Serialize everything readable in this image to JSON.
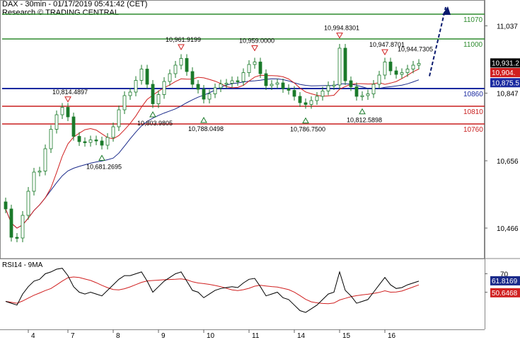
{
  "header": {
    "title": "DAX - 30min - 01/17/2019 05:41:42 (CET)",
    "subtitle": "Research © TRADING CENTRAL"
  },
  "colors": {
    "candle": "#1b7a2a",
    "ma_fast": "#d02020",
    "ma_slow": "#1a2a8a",
    "resistance": "#2e8b2e",
    "pivot": "#1a2aa0",
    "support": "#c81e1e",
    "rsi": "#000000",
    "rsi_ma": "#d02020",
    "arrow": "#0a1a6e"
  },
  "chart_data": [
    {
      "type": "candlestick",
      "title": "DAX - 30min - 01/17/2019 05:41:42 (CET)",
      "ylim": [
        10380,
        11110
      ],
      "y_ticks": [
        11037,
        10847,
        10656,
        10466
      ],
      "x_tick_labels": [
        "4",
        "7",
        "8",
        "9",
        "10",
        "11",
        "14",
        "15",
        "16"
      ],
      "levels": [
        {
          "value": 11070,
          "label": "11070",
          "kind": "resistance"
        },
        {
          "value": 11000,
          "label": "11000",
          "kind": "resistance"
        },
        {
          "value": 10860,
          "label": "10860",
          "kind": "pivot"
        },
        {
          "value": 10810,
          "label": "10810",
          "kind": "support"
        },
        {
          "value": 10760,
          "label": "10760",
          "kind": "support"
        }
      ],
      "price_tags": [
        {
          "value": 10931.2,
          "label": "10,931.2",
          "bg": "#000000"
        },
        {
          "value": 10904.0,
          "label": "10,904.",
          "bg": "#d02020"
        },
        {
          "value": 10875.5,
          "label": "10,875.5",
          "bg": "#1a2aa0"
        }
      ],
      "annotations": [
        {
          "label": "10,814.4897",
          "x": 11,
          "y": 10814.4897,
          "type": "high"
        },
        {
          "label": "10,681.2695",
          "x": 17,
          "y": 10681.2695,
          "type": "low"
        },
        {
          "label": "10,803.9805",
          "x": 26,
          "y": 10803.9805,
          "type": "low"
        },
        {
          "label": "10,961.9199",
          "x": 31,
          "y": 10961.9199,
          "type": "high"
        },
        {
          "label": "10,788.0498",
          "x": 35,
          "y": 10788.0498,
          "type": "low"
        },
        {
          "label": "10,959.0000",
          "x": 44,
          "y": 10959.0,
          "type": "high"
        },
        {
          "label": "10,786.7500",
          "x": 53,
          "y": 10786.75,
          "type": "low"
        },
        {
          "label": "10,994.8301",
          "x": 59,
          "y": 10994.8301,
          "type": "high"
        },
        {
          "label": "10,812.5898",
          "x": 63,
          "y": 10812.5898,
          "type": "low"
        },
        {
          "label": "10,947.8701",
          "x": 67,
          "y": 10947.8701,
          "type": "high"
        },
        {
          "label": "10,944.7305",
          "x": 73,
          "y": 10944.7305,
          "type": "text"
        }
      ],
      "x_labels_at": [
        4,
        11,
        19,
        27,
        35,
        43,
        51,
        59,
        67
      ],
      "close": [
        10520,
        10440,
        10438,
        10502,
        10570,
        10624,
        10627,
        10690,
        10745,
        10786,
        10807,
        10780,
        10725,
        10710,
        10708,
        10715,
        10712,
        10700,
        10722,
        10752,
        10800,
        10840,
        10850,
        10883,
        10915,
        10872,
        10817,
        10843,
        10880,
        10902,
        10926,
        10945,
        10908,
        10872,
        10858,
        10830,
        10845,
        10862,
        10873,
        10875,
        10882,
        10880,
        10905,
        10928,
        10935,
        10902,
        10868,
        10872,
        10876,
        10860,
        10855,
        10838,
        10820,
        10815,
        10826,
        10838,
        10853,
        10868,
        10870,
        10974,
        10882,
        10865,
        10838,
        10840,
        10845,
        10872,
        10898,
        10935,
        10910,
        10900,
        10905,
        10915,
        10926,
        10931
      ],
      "rsi": {
        "title": "RSI14 - 9MA",
        "ylim": [
          15,
          85
        ],
        "y_ticks": [
          70,
          50
        ],
        "last": "61.8169",
        "last_ma": "50.6468",
        "values": [
          40,
          38,
          36,
          48,
          56,
          62,
          64,
          70,
          72,
          75,
          76,
          68,
          56,
          50,
          48,
          50,
          48,
          46,
          52,
          58,
          64,
          68,
          68,
          70,
          72,
          62,
          50,
          56,
          62,
          66,
          70,
          72,
          62,
          52,
          50,
          44,
          48,
          52,
          54,
          55,
          56,
          55,
          60,
          64,
          65,
          56,
          46,
          48,
          50,
          44,
          42,
          36,
          30,
          28,
          32,
          36,
          42,
          48,
          50,
          72,
          52,
          46,
          38,
          40,
          42,
          50,
          58,
          66,
          58,
          54,
          55,
          58,
          60,
          62
        ]
      }
    }
  ]
}
